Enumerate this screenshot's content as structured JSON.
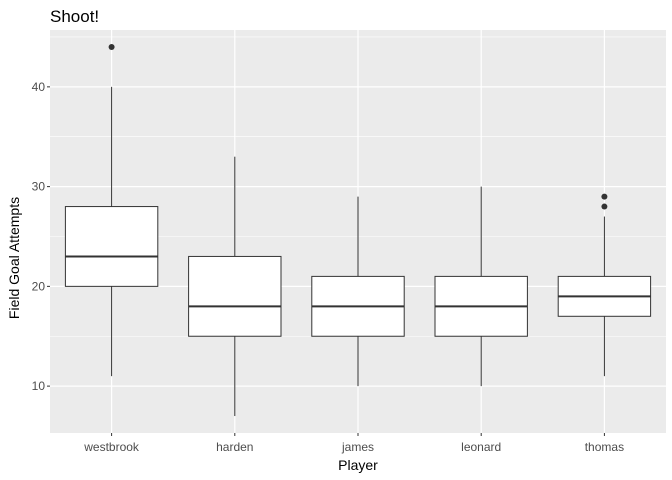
{
  "chart_data": {
    "type": "boxplot",
    "title": "Shoot!",
    "xlabel": "Player",
    "ylabel": "Field Goal Attempts",
    "ylim": [
      5.3,
      45.7
    ],
    "yticks": [
      10,
      20,
      30,
      40
    ],
    "grid": true,
    "legend": "none",
    "colors": {
      "panel": "#ebebeb",
      "grid_major": "#ffffff",
      "box_fill": "#ffffff",
      "box_line": "#333333",
      "outlier": "#333333",
      "tick_label": "#4d4d4d",
      "tick_mark": "#333333"
    },
    "categories": [
      "westbrook",
      "harden",
      "james",
      "leonard",
      "thomas"
    ],
    "boxes": [
      {
        "category": "westbrook",
        "whisker_low": 11,
        "q1": 20,
        "median": 23,
        "q3": 28,
        "whisker_high": 40,
        "outliers": [
          44
        ]
      },
      {
        "category": "harden",
        "whisker_low": 7,
        "q1": 15,
        "median": 18,
        "q3": 23,
        "whisker_high": 33,
        "outliers": []
      },
      {
        "category": "james",
        "whisker_low": 10,
        "q1": 15,
        "median": 18,
        "q3": 21,
        "whisker_high": 29,
        "outliers": []
      },
      {
        "category": "leonard",
        "whisker_low": 10,
        "q1": 15,
        "median": 18,
        "q3": 21,
        "whisker_high": 30,
        "outliers": []
      },
      {
        "category": "thomas",
        "whisker_low": 11,
        "q1": 17,
        "median": 19,
        "q3": 21,
        "whisker_high": 27,
        "outliers": [
          28,
          29
        ]
      }
    ]
  }
}
